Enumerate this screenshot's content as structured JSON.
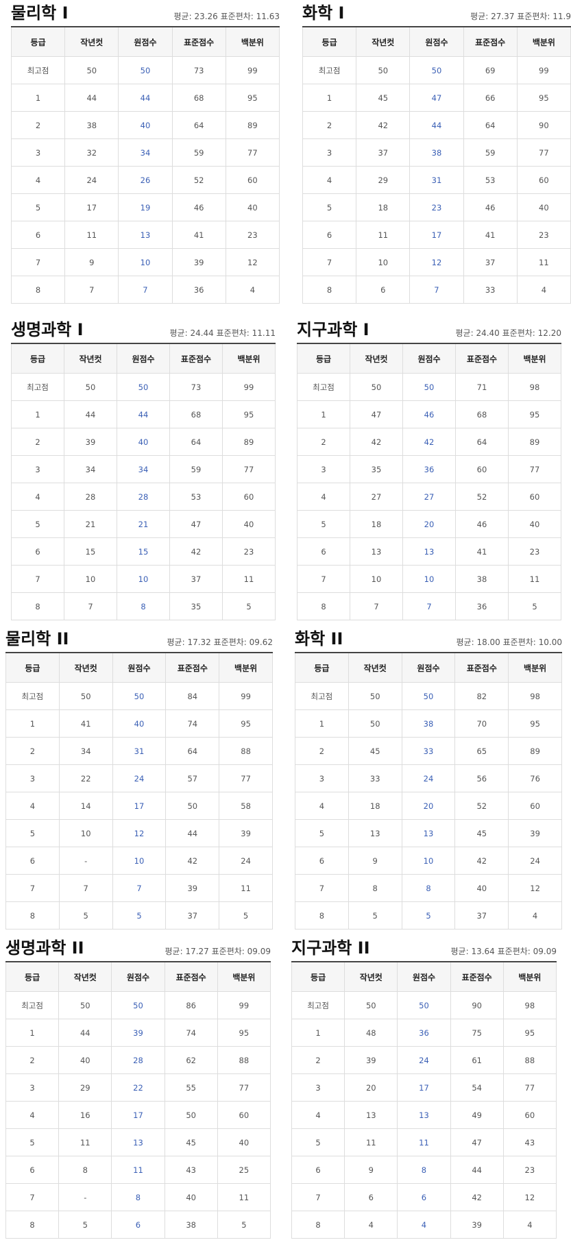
{
  "headers": [
    "등급",
    "작년컷",
    "원점수",
    "표준점수",
    "백분위"
  ],
  "panels": [
    {
      "title": "물리학 I",
      "stats": "평균: 23.26 표준편차: 11.63",
      "rows": [
        [
          "최고점",
          "50",
          "50",
          "73",
          "99"
        ],
        [
          "1",
          "44",
          "44",
          "68",
          "95"
        ],
        [
          "2",
          "38",
          "40",
          "64",
          "89"
        ],
        [
          "3",
          "32",
          "34",
          "59",
          "77"
        ],
        [
          "4",
          "24",
          "26",
          "52",
          "60"
        ],
        [
          "5",
          "17",
          "19",
          "46",
          "40"
        ],
        [
          "6",
          "11",
          "13",
          "41",
          "23"
        ],
        [
          "7",
          "9",
          "10",
          "39",
          "12"
        ],
        [
          "8",
          "7",
          "7",
          "36",
          "4"
        ]
      ]
    },
    {
      "title": "화학 I",
      "stats": "평균: 27.37 표준편차: 11.9",
      "rows": [
        [
          "최고점",
          "50",
          "50",
          "69",
          "99"
        ],
        [
          "1",
          "45",
          "47",
          "66",
          "95"
        ],
        [
          "2",
          "42",
          "44",
          "64",
          "90"
        ],
        [
          "3",
          "37",
          "38",
          "59",
          "77"
        ],
        [
          "4",
          "29",
          "31",
          "53",
          "60"
        ],
        [
          "5",
          "18",
          "23",
          "46",
          "40"
        ],
        [
          "6",
          "11",
          "17",
          "41",
          "23"
        ],
        [
          "7",
          "10",
          "12",
          "37",
          "11"
        ],
        [
          "8",
          "6",
          "7",
          "33",
          "4"
        ]
      ]
    },
    {
      "title": "생명과학 I",
      "stats": "평균: 24.44 표준편차: 11.11",
      "rows": [
        [
          "최고점",
          "50",
          "50",
          "73",
          "99"
        ],
        [
          "1",
          "44",
          "44",
          "68",
          "95"
        ],
        [
          "2",
          "39",
          "40",
          "64",
          "89"
        ],
        [
          "3",
          "34",
          "34",
          "59",
          "77"
        ],
        [
          "4",
          "28",
          "28",
          "53",
          "60"
        ],
        [
          "5",
          "21",
          "21",
          "47",
          "40"
        ],
        [
          "6",
          "15",
          "15",
          "42",
          "23"
        ],
        [
          "7",
          "10",
          "10",
          "37",
          "11"
        ],
        [
          "8",
          "7",
          "8",
          "35",
          "5"
        ]
      ]
    },
    {
      "title": "지구과학 I",
      "stats": "평균: 24.40 표준편차: 12.20",
      "rows": [
        [
          "최고점",
          "50",
          "50",
          "71",
          "98"
        ],
        [
          "1",
          "47",
          "46",
          "68",
          "95"
        ],
        [
          "2",
          "42",
          "42",
          "64",
          "89"
        ],
        [
          "3",
          "35",
          "36",
          "60",
          "77"
        ],
        [
          "4",
          "27",
          "27",
          "52",
          "60"
        ],
        [
          "5",
          "18",
          "20",
          "46",
          "40"
        ],
        [
          "6",
          "13",
          "13",
          "41",
          "23"
        ],
        [
          "7",
          "10",
          "10",
          "38",
          "11"
        ],
        [
          "8",
          "7",
          "7",
          "36",
          "5"
        ]
      ]
    },
    {
      "title": "물리학 II",
      "stats": "평균: 17.32 표준편차: 09.62",
      "rows": [
        [
          "최고점",
          "50",
          "50",
          "84",
          "99"
        ],
        [
          "1",
          "41",
          "40",
          "74",
          "95"
        ],
        [
          "2",
          "34",
          "31",
          "64",
          "88"
        ],
        [
          "3",
          "22",
          "24",
          "57",
          "77"
        ],
        [
          "4",
          "14",
          "17",
          "50",
          "58"
        ],
        [
          "5",
          "10",
          "12",
          "44",
          "39"
        ],
        [
          "6",
          "-",
          "10",
          "42",
          "24"
        ],
        [
          "7",
          "7",
          "7",
          "39",
          "11"
        ],
        [
          "8",
          "5",
          "5",
          "37",
          "5"
        ]
      ]
    },
    {
      "title": "화학 II",
      "stats": "평균: 18.00 표준편차: 10.00",
      "rows": [
        [
          "최고점",
          "50",
          "50",
          "82",
          "98"
        ],
        [
          "1",
          "50",
          "38",
          "70",
          "95"
        ],
        [
          "2",
          "45",
          "33",
          "65",
          "89"
        ],
        [
          "3",
          "33",
          "24",
          "56",
          "76"
        ],
        [
          "4",
          "18",
          "20",
          "52",
          "60"
        ],
        [
          "5",
          "13",
          "13",
          "45",
          "39"
        ],
        [
          "6",
          "9",
          "10",
          "42",
          "24"
        ],
        [
          "7",
          "8",
          "8",
          "40",
          "12"
        ],
        [
          "8",
          "5",
          "5",
          "37",
          "4"
        ]
      ]
    },
    {
      "title": "생명과학 II",
      "stats": "평균: 17.27 표준편차: 09.09",
      "rows": [
        [
          "최고점",
          "50",
          "50",
          "86",
          "99"
        ],
        [
          "1",
          "44",
          "39",
          "74",
          "95"
        ],
        [
          "2",
          "40",
          "28",
          "62",
          "88"
        ],
        [
          "3",
          "29",
          "22",
          "55",
          "77"
        ],
        [
          "4",
          "16",
          "17",
          "50",
          "60"
        ],
        [
          "5",
          "11",
          "13",
          "45",
          "40"
        ],
        [
          "6",
          "8",
          "11",
          "43",
          "25"
        ],
        [
          "7",
          "-",
          "8",
          "40",
          "11"
        ],
        [
          "8",
          "5",
          "6",
          "38",
          "5"
        ]
      ]
    },
    {
      "title": "지구과학 II",
      "stats": "평균: 13.64 표준편차: 09.09",
      "rows": [
        [
          "최고점",
          "50",
          "50",
          "90",
          "98"
        ],
        [
          "1",
          "48",
          "36",
          "75",
          "95"
        ],
        [
          "2",
          "39",
          "24",
          "61",
          "88"
        ],
        [
          "3",
          "20",
          "17",
          "54",
          "77"
        ],
        [
          "4",
          "13",
          "13",
          "49",
          "60"
        ],
        [
          "5",
          "11",
          "11",
          "47",
          "43"
        ],
        [
          "6",
          "9",
          "8",
          "44",
          "23"
        ],
        [
          "7",
          "6",
          "6",
          "42",
          "12"
        ],
        [
          "8",
          "4",
          "4",
          "39",
          "4"
        ]
      ]
    }
  ]
}
